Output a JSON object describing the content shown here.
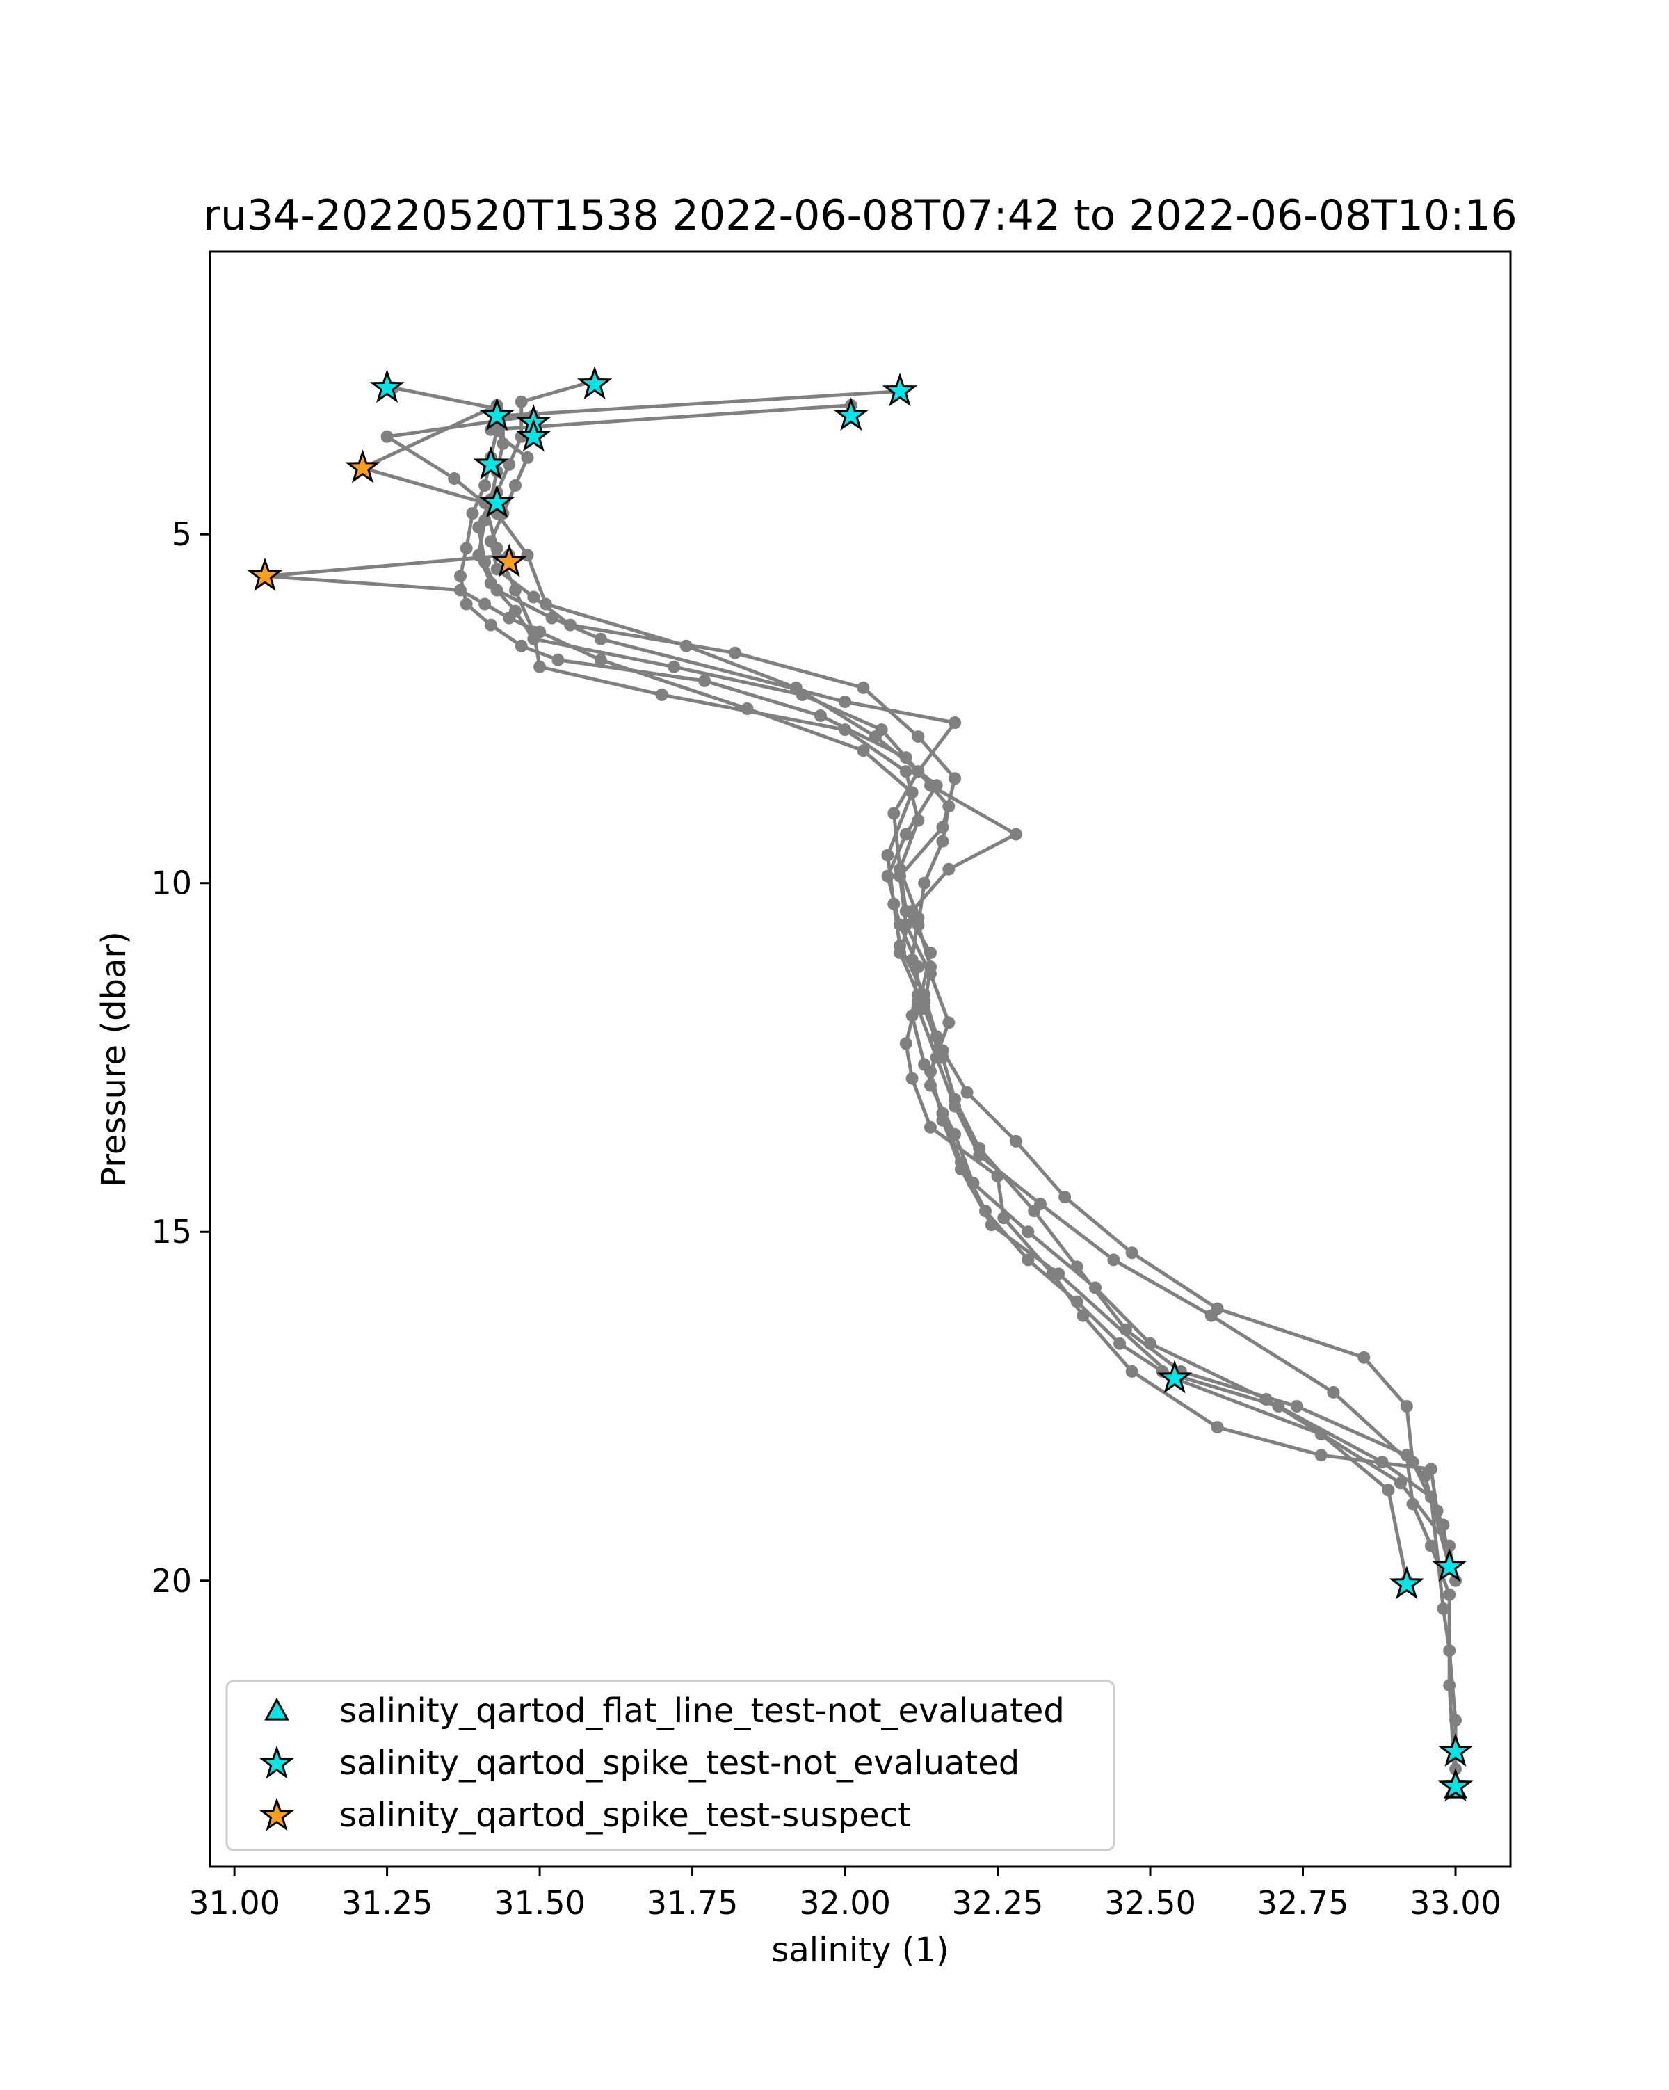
{
  "chart_data": {
    "type": "line",
    "title": "ru34-20220520T1538 2022-06-08T07:42 to 2022-06-08T10:16",
    "xlabel": "salinity (1)",
    "ylabel": "Pressure (dbar)",
    "xlim": [
      30.96,
      33.09
    ],
    "ylim": [
      24.1,
      0.95
    ],
    "y_inverted": true,
    "grid": false,
    "legend_position": "lower-left",
    "x_ticks": [
      "31.00",
      "31.25",
      "31.50",
      "31.75",
      "32.00",
      "32.25",
      "32.50",
      "32.75",
      "33.00"
    ],
    "x_tick_values": [
      31.0,
      31.25,
      31.5,
      31.75,
      32.0,
      32.25,
      32.5,
      32.75,
      33.0
    ],
    "y_ticks": [
      "5",
      "10",
      "15",
      "20"
    ],
    "y_tick_values": [
      5,
      10,
      15,
      20
    ],
    "profile_color": "#808080",
    "profiles": [
      {
        "x": [
          31.26,
          31.43,
          31.43,
          31.42,
          31.41,
          31.39,
          31.38,
          31.37,
          31.38,
          31.42,
          31.47,
          31.53,
          31.77,
          31.96,
          32.1,
          32.17,
          32.16,
          32.13,
          32.12,
          32.14,
          32.13,
          32.16,
          32.18,
          32.22,
          32.31,
          32.38,
          32.46,
          32.55,
          32.74,
          32.92,
          32.93,
          32.96,
          32.99,
          32.99,
          33.0
        ],
        "y": [
          2.9,
          3.2,
          3.5,
          3.9,
          4.3,
          4.7,
          5.2,
          5.6,
          6.0,
          6.3,
          6.6,
          6.8,
          7.1,
          7.6,
          8.2,
          8.9,
          9.4,
          10.0,
          10.6,
          11.2,
          11.8,
          12.5,
          13.1,
          13.8,
          14.7,
          15.5,
          16.4,
          17.0,
          17.5,
          18.2,
          18.9,
          19.5,
          20.2,
          21.5,
          23.0
        ]
      },
      {
        "x": [
          31.59,
          31.47,
          31.47,
          31.45,
          31.43,
          31.41,
          31.4,
          31.42,
          31.46,
          31.49,
          31.72,
          31.93,
          32.06,
          32.14,
          32.28,
          32.17,
          32.11,
          32.09,
          32.12,
          32.1,
          32.11,
          32.14,
          32.25,
          32.26,
          32.34,
          32.39,
          32.47,
          32.61,
          32.78,
          32.96,
          32.97,
          32.99
        ],
        "y": [
          2.8,
          3.1,
          3.6,
          4.0,
          4.4,
          4.8,
          5.3,
          5.7,
          6.1,
          6.5,
          6.9,
          7.3,
          7.8,
          8.6,
          9.3,
          9.8,
          10.4,
          11.0,
          11.6,
          12.3,
          12.8,
          13.5,
          14.2,
          14.8,
          15.6,
          16.2,
          17.0,
          17.8,
          18.2,
          18.4,
          19.0,
          19.8
        ]
      },
      {
        "x": [
          32.09,
          31.44,
          31.44,
          31.43,
          31.42,
          31.4,
          31.41,
          31.43,
          31.52,
          31.6,
          32.0,
          32.18,
          32.12,
          32.08,
          32.09,
          32.12,
          32.11,
          32.13,
          32.16,
          32.2,
          32.28,
          32.36,
          32.47,
          32.61,
          32.85,
          32.92,
          32.93,
          32.98,
          32.99
        ],
        "y": [
          2.95,
          3.3,
          3.7,
          4.1,
          4.5,
          4.9,
          5.4,
          5.8,
          6.2,
          6.5,
          7.4,
          7.7,
          8.4,
          9.0,
          9.8,
          10.5,
          11.1,
          11.7,
          12.4,
          13.0,
          13.7,
          14.5,
          15.3,
          16.1,
          16.8,
          17.5,
          18.3,
          19.2,
          19.8
        ]
      },
      {
        "x": [
          32.01,
          31.42,
          31.48,
          31.46,
          31.44,
          31.42,
          31.43,
          31.49,
          31.55,
          31.82,
          32.03,
          32.12,
          32.18,
          32.16,
          32.09,
          32.1,
          32.14,
          32.17,
          32.14,
          32.16,
          32.19,
          32.24,
          32.35,
          32.54,
          32.78,
          32.89,
          32.92
        ],
        "y": [
          3.15,
          3.5,
          3.9,
          4.3,
          4.7,
          5.1,
          5.5,
          5.9,
          6.3,
          6.7,
          7.2,
          7.9,
          8.5,
          9.2,
          9.9,
          10.6,
          11.3,
          12.0,
          12.7,
          13.4,
          14.1,
          14.9,
          15.6,
          17.1,
          17.9,
          18.7,
          20.0
        ]
      },
      {
        "x": [
          31.43,
          31.21,
          31.41,
          31.43,
          31.46,
          31.49,
          31.5,
          31.7,
          32.0,
          32.1,
          32.12,
          32.09,
          32.1,
          32.14,
          32.12,
          32.15,
          32.18,
          32.22,
          32.32,
          32.44,
          32.6,
          32.8,
          32.95,
          32.99
        ],
        "y": [
          3.15,
          4.05,
          4.55,
          5.2,
          5.8,
          6.4,
          6.9,
          7.3,
          7.8,
          8.4,
          9.1,
          9.8,
          10.4,
          11.0,
          11.8,
          12.5,
          13.2,
          13.9,
          14.6,
          15.4,
          16.2,
          17.3,
          18.5,
          19.8
        ]
      },
      {
        "x": [
          31.49,
          31.25,
          31.36,
          31.43,
          31.48,
          31.51,
          31.74,
          31.92,
          32.05,
          32.15,
          32.1,
          32.07,
          32.09,
          32.12,
          32.11,
          32.13,
          32.16,
          32.19,
          32.23,
          32.3,
          32.38,
          32.45,
          32.52,
          32.71,
          32.88,
          32.96,
          32.98,
          32.99,
          33.0,
          33.0
        ],
        "y": [
          3.3,
          3.6,
          4.2,
          4.7,
          5.3,
          6.0,
          6.6,
          7.2,
          7.9,
          8.6,
          9.3,
          9.9,
          10.6,
          11.2,
          11.9,
          12.6,
          13.3,
          14.0,
          14.7,
          15.4,
          16.0,
          16.6,
          17.0,
          17.5,
          18.3,
          18.8,
          20.4,
          21.0,
          22.0,
          22.7
        ]
      },
      {
        "x": [
          31.45,
          31.05,
          31.37,
          31.41,
          31.45,
          31.5,
          31.6,
          31.84,
          32.03,
          32.11,
          32.07,
          32.08,
          32.09,
          32.13,
          32.15,
          32.14,
          32.18,
          32.21,
          32.3,
          32.41,
          32.5,
          32.69,
          32.91,
          32.99,
          33.0
        ],
        "y": [
          5.3,
          5.6,
          5.8,
          6.0,
          6.2,
          6.4,
          6.8,
          7.5,
          8.1,
          8.7,
          9.6,
          10.3,
          10.9,
          11.6,
          12.2,
          12.9,
          13.6,
          14.3,
          15.0,
          15.8,
          16.6,
          17.4,
          18.6,
          19.5,
          20.0
        ]
      }
    ],
    "flag_points": [
      {
        "flag": "not_evaluated",
        "marker": "star",
        "x": 31.25,
        "y": 2.9
      },
      {
        "flag": "not_evaluated",
        "marker": "star",
        "x": 31.59,
        "y": 2.85
      },
      {
        "flag": "not_evaluated",
        "marker": "star",
        "x": 32.09,
        "y": 2.95
      },
      {
        "flag": "not_evaluated",
        "marker": "star",
        "x": 31.43,
        "y": 3.3
      },
      {
        "flag": "not_evaluated",
        "marker": "star",
        "x": 32.01,
        "y": 3.3
      },
      {
        "flag": "not_evaluated",
        "marker": "star",
        "x": 31.49,
        "y": 3.4
      },
      {
        "flag": "not_evaluated",
        "marker": "star",
        "x": 31.49,
        "y": 3.6
      },
      {
        "flag": "not_evaluated",
        "marker": "star",
        "x": 31.42,
        "y": 4.0
      },
      {
        "flag": "not_evaluated",
        "marker": "star",
        "x": 31.43,
        "y": 4.55
      },
      {
        "flag": "not_evaluated",
        "marker": "star",
        "x": 32.54,
        "y": 17.1
      },
      {
        "flag": "not_evaluated",
        "marker": "star",
        "x": 32.99,
        "y": 19.8
      },
      {
        "flag": "not_evaluated",
        "marker": "star",
        "x": 32.92,
        "y": 20.05
      },
      {
        "flag": "not_evaluated",
        "marker": "star",
        "x": 33.0,
        "y": 22.45
      },
      {
        "flag": "not_evaluated",
        "marker": "star",
        "x": 33.0,
        "y": 22.95
      },
      {
        "flag": "suspect",
        "marker": "star",
        "x": 31.21,
        "y": 4.05
      },
      {
        "flag": "suspect",
        "marker": "star",
        "x": 31.45,
        "y": 5.4
      },
      {
        "flag": "suspect",
        "marker": "star",
        "x": 31.05,
        "y": 5.6
      }
    ],
    "flat_line_points": [
      {
        "x": 33.0,
        "y": 23.0
      }
    ],
    "legend": [
      {
        "label": "salinity_qartod_flat_line_test-not_evaluated",
        "marker": "triangle",
        "color": "#00e5e5"
      },
      {
        "label": "salinity_qartod_spike_test-not_evaluated",
        "marker": "star",
        "color": "#00e5e5"
      },
      {
        "label": "salinity_qartod_spike_test-suspect",
        "marker": "star",
        "color": "#ff9f1c"
      }
    ]
  }
}
